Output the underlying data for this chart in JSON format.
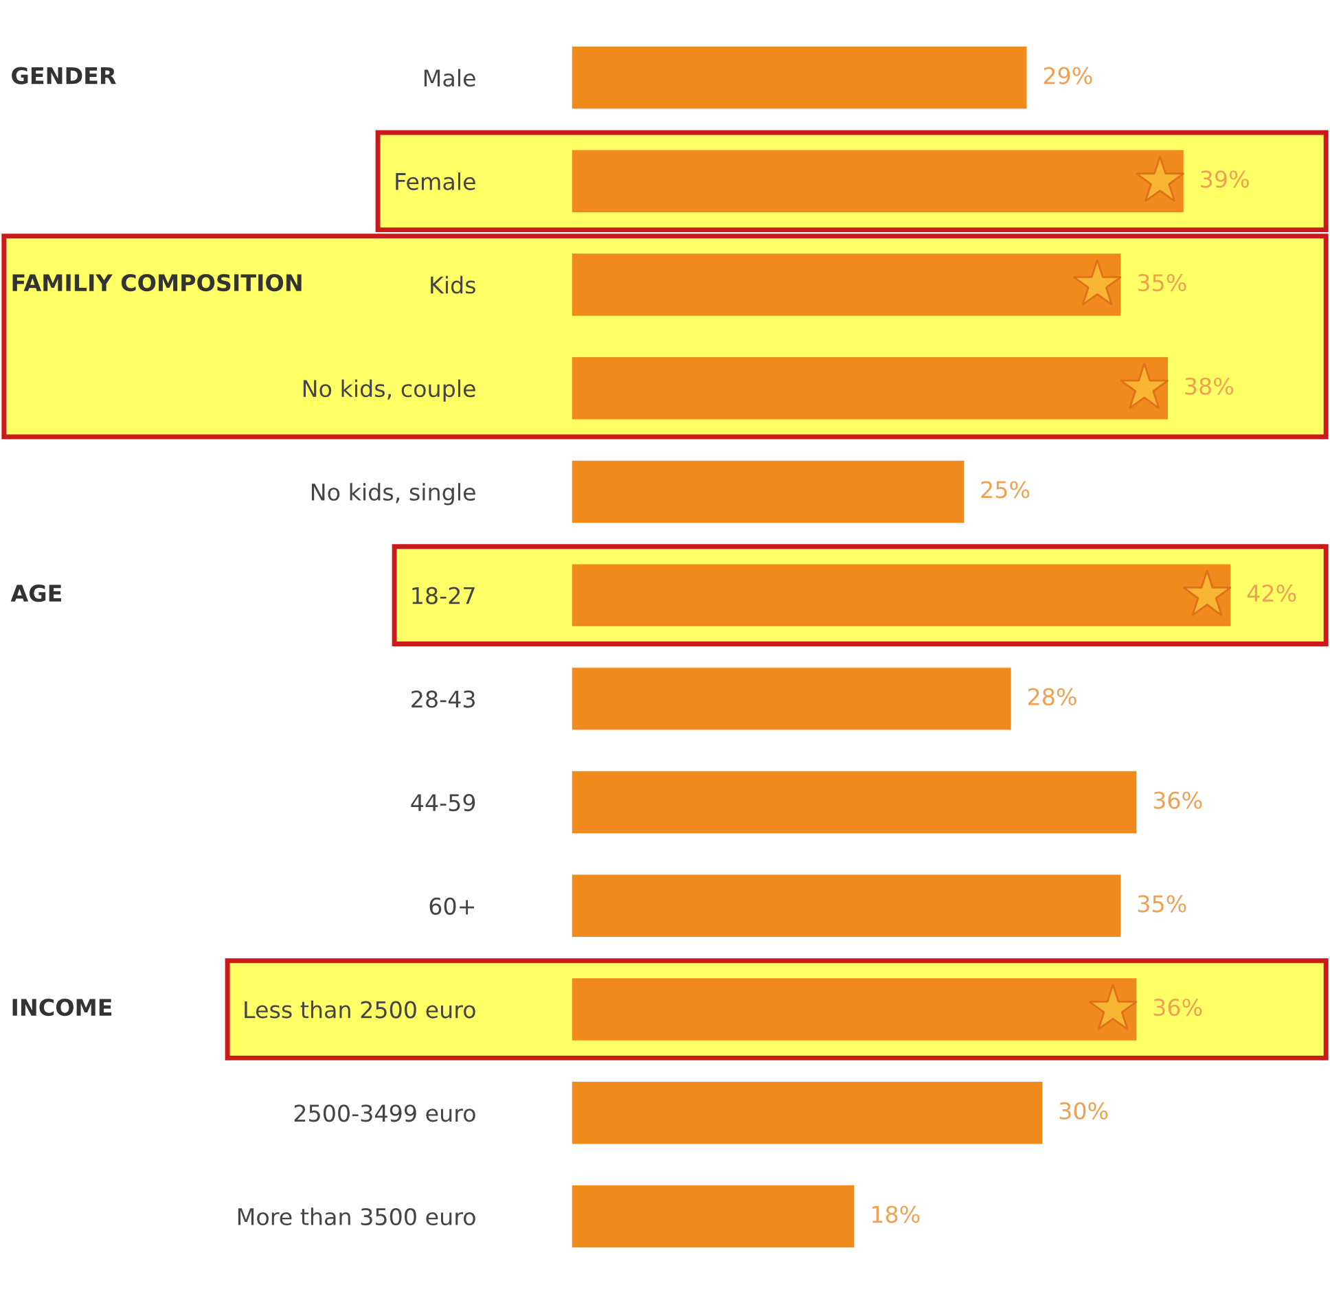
{
  "chart_data": {
    "type": "bar",
    "orientation": "horizontal",
    "categories": [
      "Male",
      "Female",
      "Kids",
      "No kids, couple",
      "No kids, single",
      "18-27",
      "28-43",
      "44-59",
      "60+",
      "Less than 2500 euro",
      "2500-3499 euro",
      "More than 3500 euro"
    ],
    "values": [
      29,
      39,
      35,
      38,
      25,
      42,
      28,
      36,
      35,
      36,
      30,
      18
    ],
    "value_labels": [
      "29%",
      "39%",
      "35%",
      "38%",
      "25%",
      "42%",
      "28%",
      "36%",
      "35%",
      "36%",
      "30%",
      "18%"
    ],
    "color": "#f18a1d",
    "tick_labels": "y",
    "grid": false,
    "annotations": [
      "GENDER",
      "FAMILIY COMPOSITION",
      "AGE",
      "INCOME"
    ],
    "bands": [
      {
        "axis": "y",
        "from": "Female",
        "to": "Female",
        "color": "#ffff66"
      },
      {
        "axis": "y",
        "from": "Kids",
        "to": "No kids, couple",
        "color": "#ffff66"
      },
      {
        "axis": "y",
        "from": "18-27",
        "to": "18-27",
        "color": "#ffff66"
      },
      {
        "axis": "y",
        "from": "Less than 2500 euro",
        "to": "Less than 2500 euro",
        "color": "#ffff66"
      }
    ]
  }
}
